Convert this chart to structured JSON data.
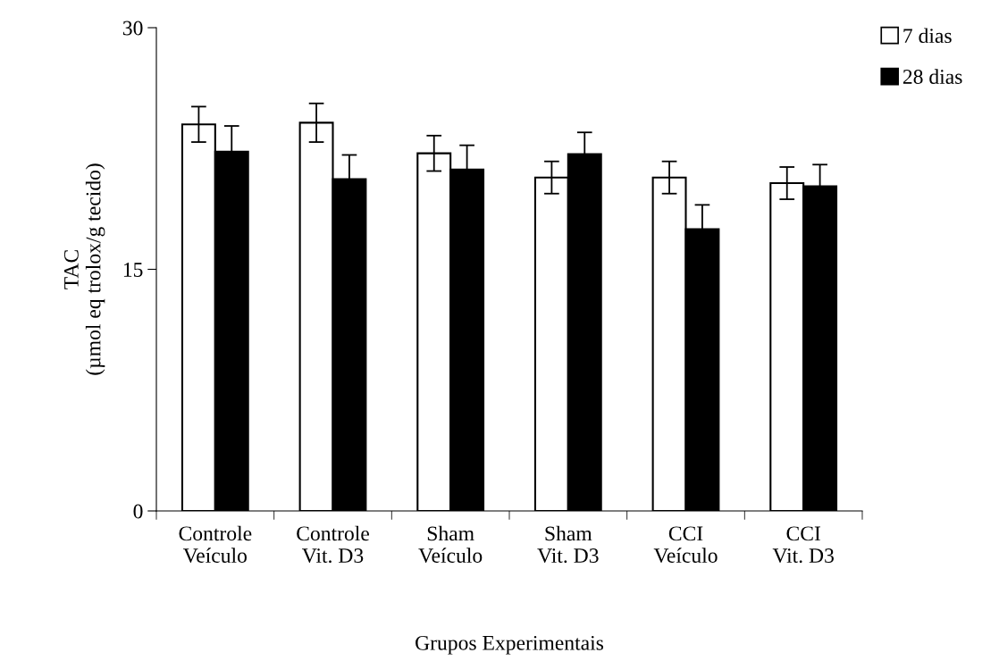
{
  "chart_data": {
    "type": "bar",
    "xlabel": "Grupos Experimentais",
    "ylabel": "TAC\n(µmol eq trolox/g tecido)",
    "categories": [
      "Controle\nVeículo",
      "Controle\nVit. D3",
      "Sham\nVeículo",
      "Sham\nVit. D3",
      "CCI\nVeículo",
      "CCI\nVit. D3"
    ],
    "series": [
      {
        "name": "7 dias",
        "color": "#ffffff",
        "values": [
          24.0,
          24.1,
          22.2,
          20.7,
          20.7,
          20.35
        ],
        "errors": [
          1.1,
          1.2,
          1.1,
          1.0,
          1.0,
          1.0
        ]
      },
      {
        "name": "28 dias",
        "color": "#000000",
        "values": [
          22.3,
          20.6,
          21.2,
          22.15,
          17.5,
          20.15
        ],
        "errors": [
          1.6,
          1.5,
          1.5,
          1.35,
          1.5,
          1.35
        ]
      }
    ],
    "ylim": [
      0,
      30
    ],
    "yticks": [
      0,
      15,
      30
    ],
    "grid": false,
    "legend": "top right"
  }
}
